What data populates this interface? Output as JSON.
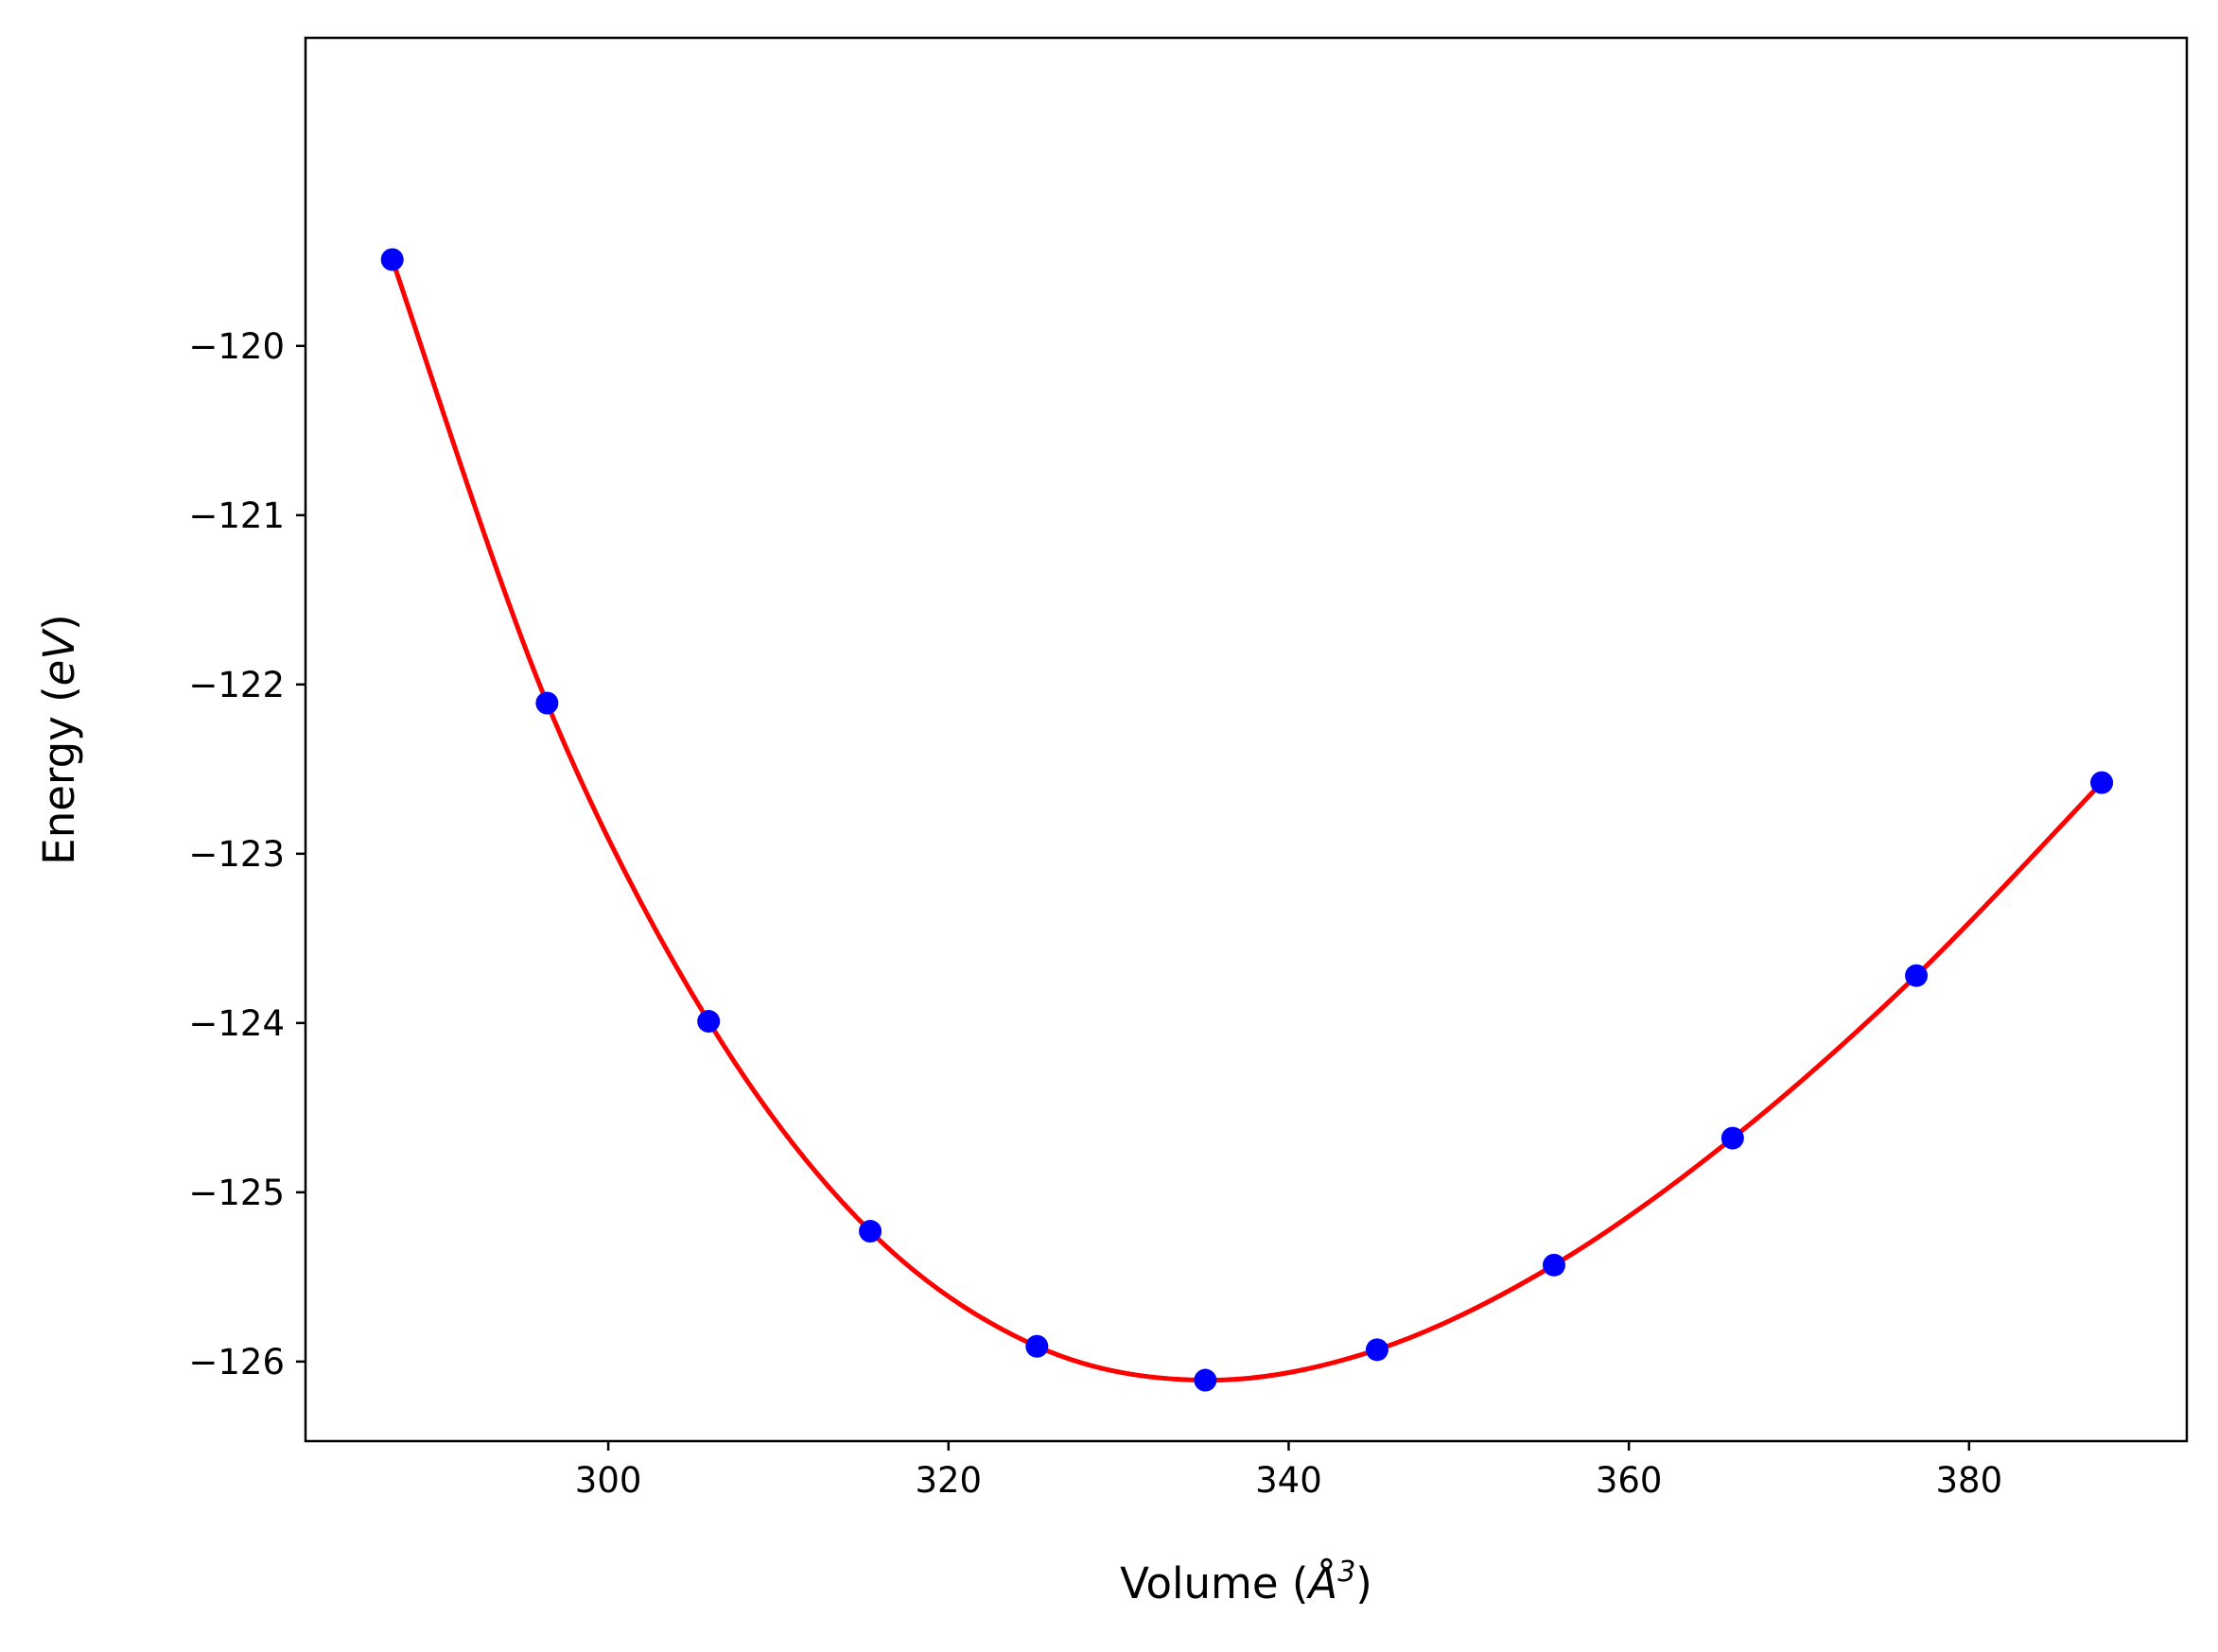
{
  "chart_data": {
    "type": "scatter",
    "xlabel": "Volume (Å³)",
    "xlabel_parts": {
      "prefix": "Volume (",
      "symbol": "Å",
      "exponent": "3",
      "suffix": ")"
    },
    "ylabel": "Energy (eV)",
    "ylabel_parts": {
      "prefix": "Energy (",
      "unit": "eV",
      "suffix": ")"
    },
    "xlim": [
      282.2,
      392.8
    ],
    "ylim": [
      -126.47,
      -118.18
    ],
    "x_ticks": [
      300,
      320,
      340,
      360,
      380
    ],
    "x_tick_labels": [
      "300",
      "320",
      "340",
      "360",
      "380"
    ],
    "y_ticks": [
      -126,
      -125,
      -124,
      -123,
      -122,
      -121,
      -120
    ],
    "y_tick_labels": [
      "−126",
      "−125",
      "−124",
      "−123",
      "−122",
      "−121",
      "−120"
    ],
    "grid": false,
    "legend": "none",
    "series": [
      {
        "kind": "points",
        "color": "#0000ff",
        "x": [
          287.3,
          296.4,
          305.9,
          315.4,
          325.2,
          335.1,
          345.2,
          355.6,
          366.1,
          376.9,
          387.8
        ],
        "y": [
          -119.49,
          -122.11,
          -123.99,
          -125.23,
          -125.91,
          -126.11,
          -125.93,
          -125.43,
          -124.68,
          -123.72,
          -122.58
        ]
      },
      {
        "kind": "fit-curve",
        "color": "#ff0000",
        "x": [
          287.3,
          296.4,
          305.9,
          315.4,
          325.2,
          335.1,
          345.2,
          355.6,
          366.1,
          376.9,
          387.8
        ],
        "y": [
          -119.49,
          -122.11,
          -123.99,
          -125.23,
          -125.91,
          -126.11,
          -125.93,
          -125.43,
          -124.68,
          -123.72,
          -122.58
        ]
      }
    ]
  }
}
